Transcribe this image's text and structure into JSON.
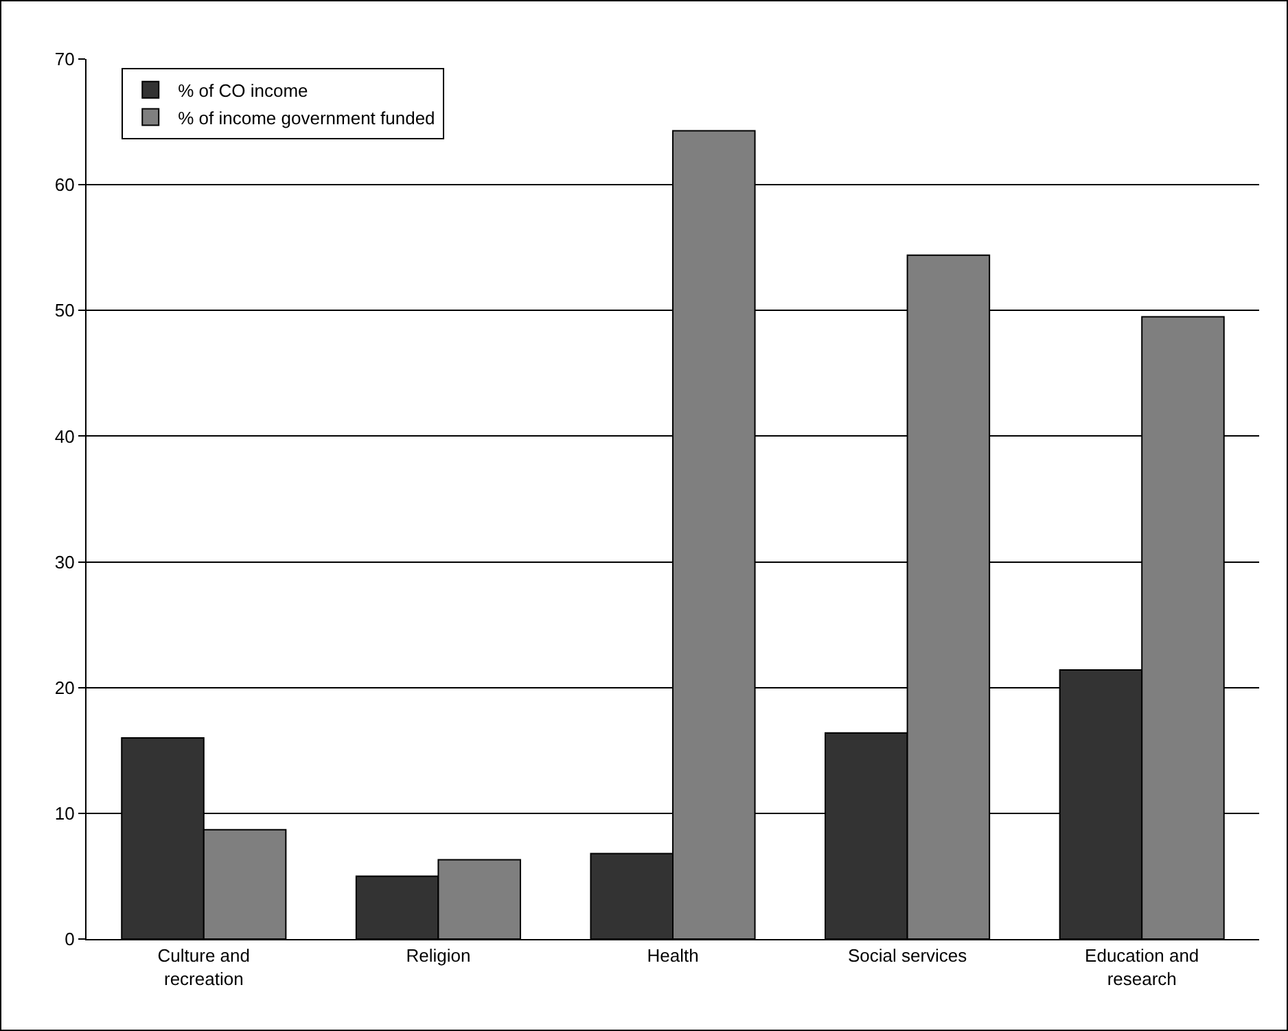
{
  "chart_data": {
    "type": "bar",
    "categories": [
      "Culture and recreation",
      "Religion",
      "Health",
      "Social services",
      "Education and research"
    ],
    "series": [
      {
        "name": "% of CO income",
        "color": "#333333",
        "values": [
          16.0,
          5.0,
          6.8,
          16.4,
          21.4
        ]
      },
      {
        "name": "% of income government funded",
        "color": "#7f7f7f",
        "values": [
          8.7,
          6.3,
          64.3,
          54.4,
          49.5
        ]
      }
    ],
    "ylim": [
      0,
      70
    ],
    "yticks": [
      0,
      10,
      20,
      30,
      40,
      50,
      60,
      70
    ],
    "grid": "y",
    "legend": "top left"
  }
}
